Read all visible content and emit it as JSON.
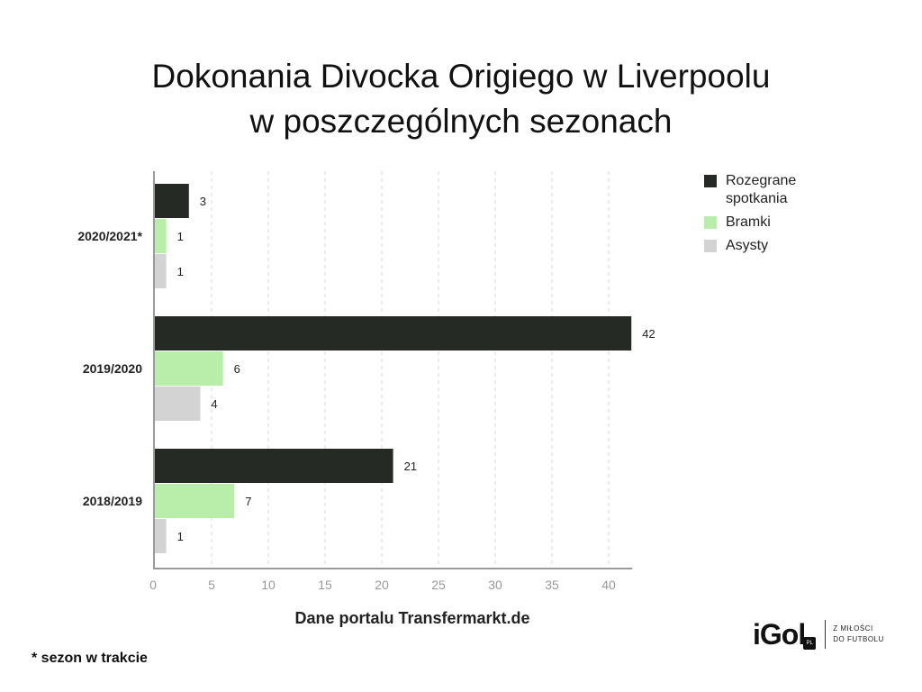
{
  "title_line1": "Dokonania Divocka Origiego w Liverpoolu",
  "title_line2": "w poszczególnych sezonach",
  "chart_data": {
    "type": "bar",
    "orientation": "horizontal",
    "categories": [
      "2020/2021*",
      "2019/2020",
      "2018/2019"
    ],
    "series": [
      {
        "name": "Rozegrane spotkania",
        "color": "#262a25",
        "values": [
          3,
          42,
          21
        ]
      },
      {
        "name": "Bramki",
        "color": "#b8eeaa",
        "values": [
          1,
          6,
          7
        ]
      },
      {
        "name": "Asysty",
        "color": "#d3d3d3",
        "values": [
          1,
          4,
          1
        ]
      }
    ],
    "xticks": [
      0,
      5,
      10,
      15,
      20,
      25,
      30,
      35,
      40
    ],
    "xlim": [
      0,
      42
    ],
    "xlabel": "Dane portalu Transfermarkt.de",
    "grid": "vertical dashed",
    "legend_position": "top-right"
  },
  "footnote": "* sezon w trakcie",
  "logo": {
    "name": "iGol",
    "badge": "PL",
    "tagline_line1": "Z MIŁOŚCI",
    "tagline_line2": "DO FUTBOLU"
  }
}
